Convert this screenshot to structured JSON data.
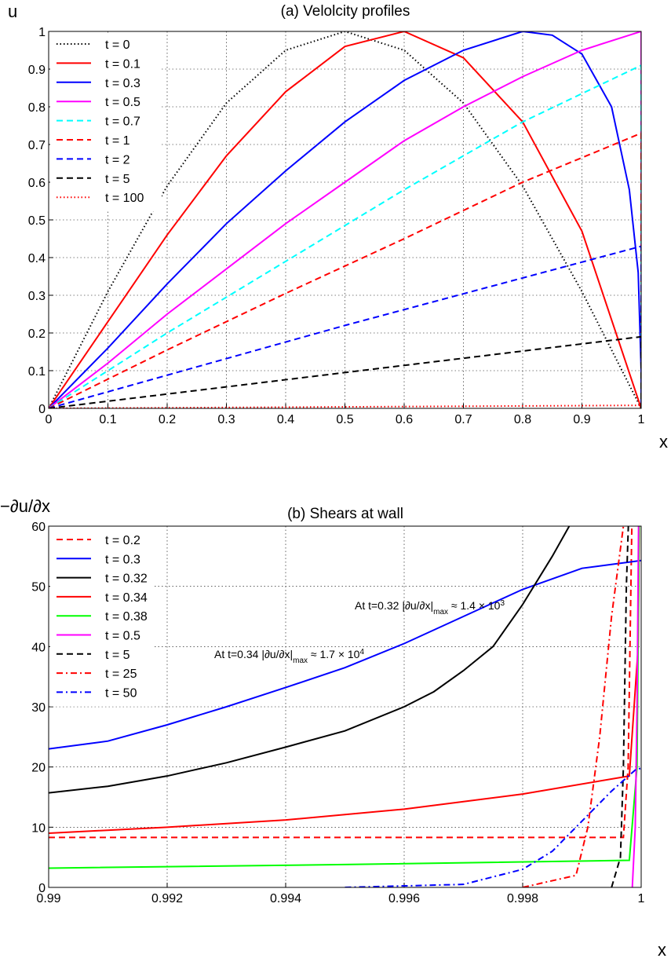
{
  "chart_data": [
    {
      "type": "line",
      "title": "(a) Velolcity profiles",
      "y_label": "u",
      "x_label": "x",
      "xlim": [
        0,
        1
      ],
      "xticks": [
        0,
        0.1,
        0.2,
        0.3,
        0.4,
        0.5,
        0.6,
        0.7,
        0.8,
        0.9,
        1
      ],
      "ylim": [
        0,
        1
      ],
      "yticks": [
        0,
        0.1,
        0.2,
        0.3,
        0.4,
        0.5,
        0.6,
        0.7,
        0.8,
        0.9,
        1
      ],
      "grid": true,
      "legend": "upper left",
      "series": [
        {
          "name": "t = 0",
          "color": "#000000",
          "dash": "dotted",
          "x": [
            0,
            0.1,
            0.2,
            0.3,
            0.4,
            0.5,
            0.6,
            0.7,
            0.8,
            0.9,
            1
          ],
          "values": [
            0,
            0.31,
            0.59,
            0.81,
            0.95,
            1,
            0.95,
            0.81,
            0.59,
            0.31,
            0
          ]
        },
        {
          "name": "t = 0.1",
          "color": "#ff0000",
          "dash": "solid",
          "x": [
            0,
            0.1,
            0.2,
            0.3,
            0.4,
            0.5,
            0.6,
            0.7,
            0.8,
            0.9,
            1
          ],
          "values": [
            0,
            0.23,
            0.46,
            0.67,
            0.84,
            0.96,
            1,
            0.93,
            0.76,
            0.47,
            0
          ]
        },
        {
          "name": "t = 0.3",
          "color": "#0000ff",
          "dash": "solid",
          "x": [
            0,
            0.1,
            0.2,
            0.3,
            0.4,
            0.5,
            0.6,
            0.7,
            0.8,
            0.85,
            0.9,
            0.95,
            0.98,
            0.995,
            1,
            1
          ],
          "values": [
            0,
            0.16,
            0.33,
            0.49,
            0.63,
            0.76,
            0.87,
            0.95,
            1,
            0.99,
            0.94,
            0.8,
            0.58,
            0.36,
            0.1,
            0
          ]
        },
        {
          "name": "t = 0.5",
          "color": "#ff00ff",
          "dash": "solid",
          "x": [
            0,
            0.1,
            0.2,
            0.3,
            0.4,
            0.5,
            0.6,
            0.7,
            0.8,
            0.9,
            1,
            1
          ],
          "values": [
            0,
            0.12,
            0.25,
            0.37,
            0.49,
            0.6,
            0.71,
            0.8,
            0.88,
            0.95,
            1,
            0
          ]
        },
        {
          "name": "t = 0.7",
          "color": "#00ffff",
          "dash": "dashed",
          "x": [
            0,
            0.2,
            0.4,
            0.6,
            0.8,
            1,
            1
          ],
          "values": [
            0,
            0.2,
            0.39,
            0.58,
            0.76,
            0.91,
            0
          ]
        },
        {
          "name": "t = 1",
          "color": "#ff0000",
          "dash": "dashed",
          "x": [
            0,
            0.2,
            0.4,
            0.6,
            0.8,
            1,
            1
          ],
          "values": [
            0,
            0.155,
            0.305,
            0.45,
            0.6,
            0.73,
            0
          ]
        },
        {
          "name": "t = 2",
          "color": "#0000ff",
          "dash": "dashed",
          "x": [
            0,
            0.5,
            1,
            1
          ],
          "values": [
            0,
            0.22,
            0.43,
            0
          ]
        },
        {
          "name": "t = 5",
          "color": "#000000",
          "dash": "dashed",
          "x": [
            0,
            0.5,
            1,
            1
          ],
          "values": [
            0,
            0.095,
            0.19,
            0
          ]
        },
        {
          "name": "t = 100",
          "color": "#ff0000",
          "dash": "dotted",
          "x": [
            0,
            1
          ],
          "values": [
            0,
            0.008
          ]
        }
      ]
    },
    {
      "type": "line",
      "title": "(b) Shears at wall",
      "y_label": "−∂u/∂x",
      "x_label": "x",
      "xlim": [
        0.99,
        1
      ],
      "xticks": [
        0.99,
        0.992,
        0.994,
        0.996,
        0.998,
        1
      ],
      "ylim": [
        0,
        60
      ],
      "yticks": [
        0,
        10,
        20,
        30,
        40,
        50,
        60
      ],
      "grid": true,
      "legend": "upper left",
      "annotations": [
        {
          "text": "At t=0.32 |∂u/∂x|",
          "sub": "max",
          "rest": " ≈ 1.4 × 10",
          "sup": "3"
        },
        {
          "text": "At t=0.34 |∂u/∂x|",
          "sub": "max",
          "rest": " ≈ 1.7 × 10",
          "sup": "4"
        }
      ],
      "series": [
        {
          "name": "t = 0.2",
          "color": "#ff0000",
          "dash": "dashed",
          "x": [
            0.99,
            0.9997,
            0.99978,
            0.99985
          ],
          "values": [
            8.3,
            8.3,
            20,
            65
          ]
        },
        {
          "name": "t = 0.3",
          "color": "#0000ff",
          "dash": "solid",
          "x": [
            0.99,
            0.991,
            0.992,
            0.993,
            0.994,
            0.995,
            0.996,
            0.997,
            0.998,
            0.999,
            1
          ],
          "values": [
            23,
            24.3,
            27,
            30,
            33.2,
            36.5,
            40.5,
            45,
            49.5,
            53,
            54.3
          ]
        },
        {
          "name": "t = 0.32",
          "color": "#000000",
          "dash": "solid",
          "x": [
            0.99,
            0.991,
            0.992,
            0.993,
            0.994,
            0.995,
            0.996,
            0.9965,
            0.997,
            0.9975,
            0.998,
            0.9985,
            0.9989
          ],
          "values": [
            15.7,
            16.8,
            18.5,
            20.7,
            23.3,
            26,
            30,
            32.5,
            36,
            40,
            47,
            55,
            62
          ]
        },
        {
          "name": "t = 0.34",
          "color": "#ff0000",
          "dash": "solid",
          "x": [
            0.99,
            0.992,
            0.994,
            0.996,
            0.998,
            0.9998,
            0.99995,
            0.99997
          ],
          "values": [
            9,
            10,
            11.2,
            13,
            15.5,
            18.5,
            40,
            65
          ]
        },
        {
          "name": "t = 0.38",
          "color": "#00ff00",
          "dash": "solid",
          "x": [
            0.99,
            0.995,
            0.9998,
            0.99993,
            0.99997
          ],
          "values": [
            3.2,
            3.8,
            4.5,
            20,
            65
          ]
        },
        {
          "name": "t = 0.5",
          "color": "#ff00ff",
          "dash": "solid",
          "x": [
            0.99985,
            0.9999,
            0.99993,
            0.99996
          ],
          "values": [
            0,
            10,
            30,
            65
          ]
        },
        {
          "name": "t = 5",
          "color": "#000000",
          "dash": "dashed",
          "x": [
            0.9995,
            0.99965,
            0.9997,
            0.99975,
            0.9998
          ],
          "values": [
            0,
            5,
            20,
            50,
            65
          ]
        },
        {
          "name": "t = 25",
          "color": "#ff0000",
          "dash": "dashdot",
          "x": [
            0.998,
            0.9989,
            0.9991,
            0.9993,
            0.9995,
            0.9997,
            0.99975
          ],
          "values": [
            0,
            2,
            10,
            25,
            45,
            60,
            65
          ]
        },
        {
          "name": "t = 50",
          "color": "#0000ff",
          "dash": "dashdot",
          "x": [
            0.995,
            0.997,
            0.998,
            0.9985,
            0.999,
            0.9995,
            0.9999,
            1
          ],
          "values": [
            0,
            0.5,
            3,
            6,
            11,
            16,
            19.5,
            19.8
          ]
        }
      ]
    }
  ]
}
